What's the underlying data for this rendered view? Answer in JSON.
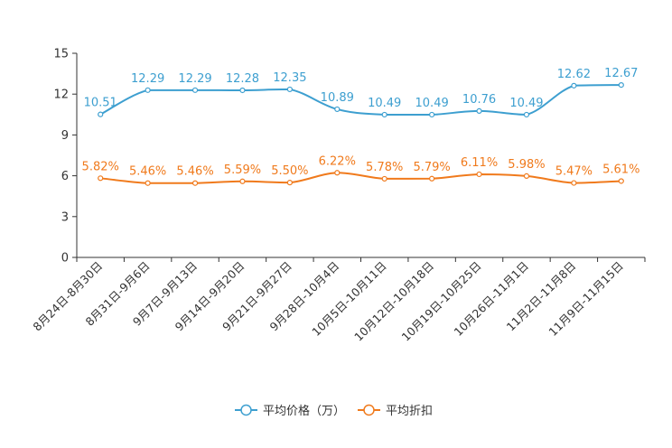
{
  "chart_data": {
    "type": "line",
    "categories": [
      "8月24日-8月30日",
      "8月31日-9月6日",
      "9月7日-9月13日",
      "9月14日-9月20日",
      "9月21日-9月27日",
      "9月28日-10月4日",
      "10月5日-10月11日",
      "10月12日-10月18日",
      "10月19日-10月25日",
      "10月26日-11月1日",
      "11月2日-11月8日",
      "11月9日-11月15日"
    ],
    "ylim": [
      0,
      15
    ],
    "yticks": [
      "0",
      "3",
      "6",
      "9",
      "12",
      "15"
    ],
    "series": [
      {
        "name": "平均价格（万）",
        "color": "#3d9fd0",
        "values": [
          10.51,
          12.29,
          12.29,
          12.28,
          12.35,
          10.89,
          10.49,
          10.49,
          10.76,
          10.49,
          12.62,
          12.67
        ],
        "labels": [
          "10.51",
          "12.29",
          "12.29",
          "12.28",
          "12.35",
          "10.89",
          "10.49",
          "10.49",
          "10.76",
          "10.49",
          "12.62",
          "12.67"
        ]
      },
      {
        "name": "平均折扣",
        "color": "#f07a1c",
        "values": [
          5.82,
          5.46,
          5.46,
          5.59,
          5.5,
          6.22,
          5.78,
          5.79,
          6.11,
          5.98,
          5.47,
          5.61
        ],
        "labels": [
          "5.82%",
          "5.46%",
          "5.46%",
          "5.59%",
          "5.50%",
          "6.22%",
          "5.78%",
          "5.79%",
          "6.11%",
          "5.98%",
          "5.47%",
          "5.61%"
        ]
      }
    ],
    "legend_position": "bottom-center",
    "grid": false
  }
}
